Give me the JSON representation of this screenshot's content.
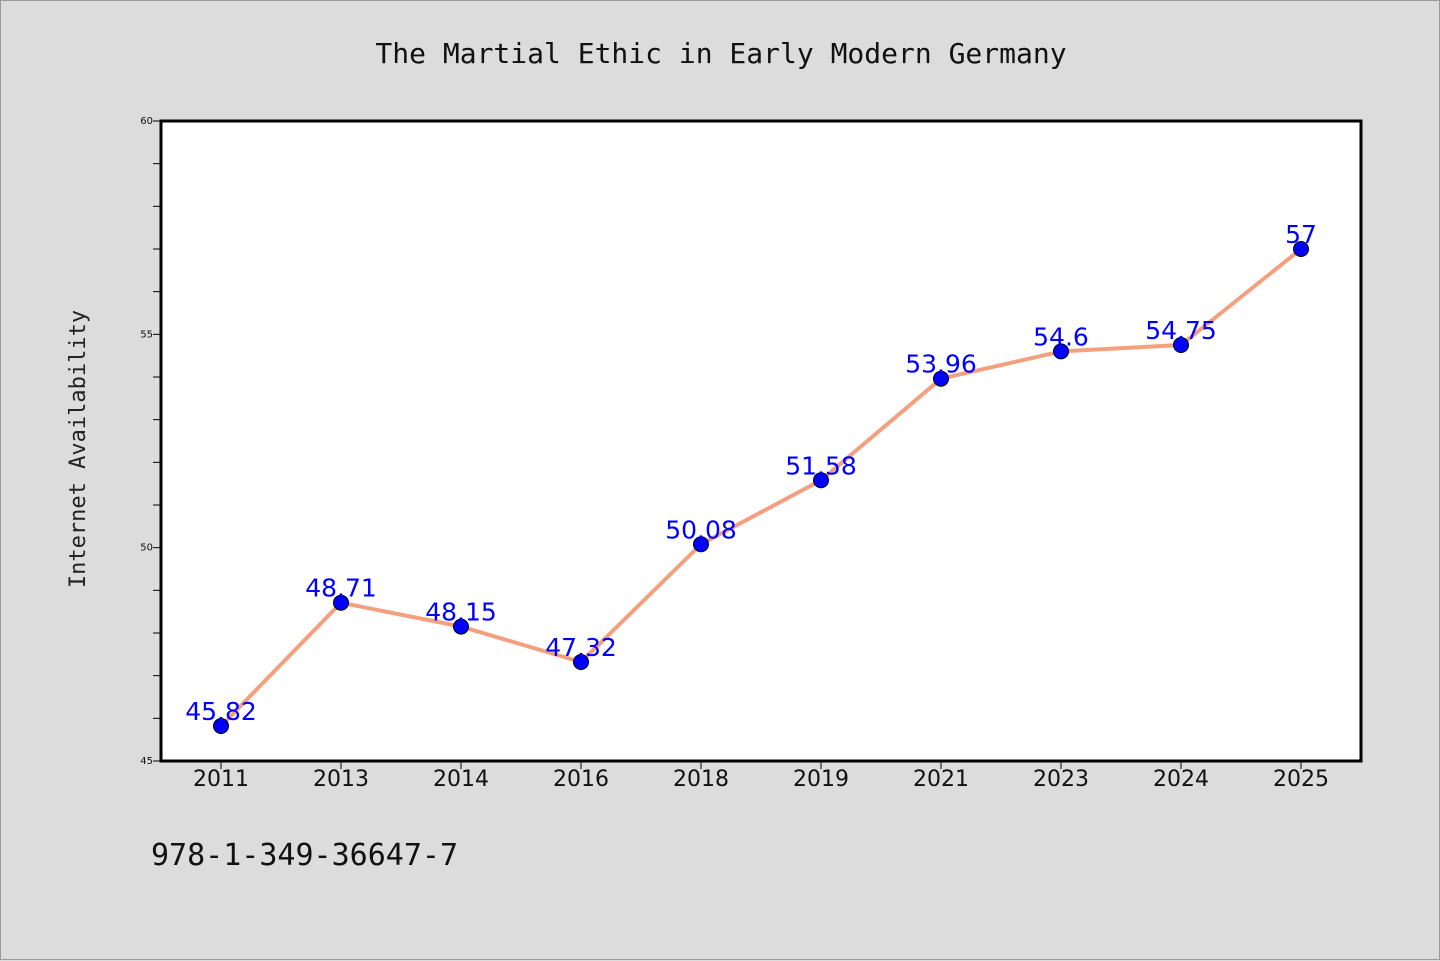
{
  "chart_data": {
    "type": "line",
    "title": "The Martial Ethic in Early Modern Germany",
    "ylabel": "Internet Availability",
    "xlabel": "",
    "categories": [
      "2011",
      "2013",
      "2014",
      "2016",
      "2018",
      "2019",
      "2021",
      "2023",
      "2024",
      "2025"
    ],
    "series": [
      {
        "values": [
          45.82,
          48.71,
          48.15,
          47.32,
          50.08,
          51.58,
          53.96,
          54.6,
          54.75,
          57
        ],
        "labels": [
          "45.82",
          "48.71",
          "48.15",
          "47.32",
          "50.08",
          "51.58",
          "53.96",
          "54.6",
          "54.75",
          "57"
        ],
        "line_color": "#f4a07e",
        "marker_color": "#0000ff"
      }
    ],
    "ylim": [
      45,
      60
    ],
    "yticks": [
      45,
      50,
      55,
      60
    ],
    "ytick_labels": [
      "45",
      "50",
      "55",
      "60"
    ],
    "grid": false,
    "legend": "none"
  },
  "footer_text": "978-1-349-36647-7",
  "colors": {
    "background": "#dcdcdc",
    "plot_background": "#ffffff",
    "line": "#f4a07e",
    "marker": "#0000ff",
    "data_label": "#0000ff"
  }
}
